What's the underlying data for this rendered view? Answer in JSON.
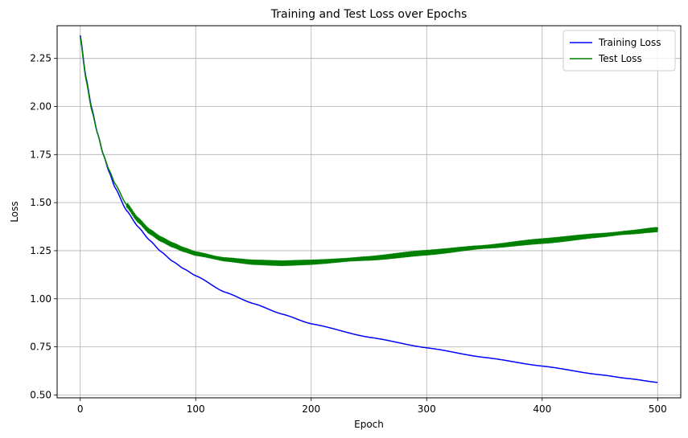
{
  "chart_data": {
    "type": "line",
    "title": "Training and Test Loss over Epochs",
    "xlabel": "Epoch",
    "ylabel": "Loss",
    "xlim": [
      -20,
      520
    ],
    "ylim": [
      0.485,
      2.42
    ],
    "xticks": [
      0,
      100,
      200,
      300,
      400,
      500
    ],
    "yticks": [
      0.5,
      0.75,
      1.0,
      1.25,
      1.5,
      1.75,
      2.0,
      2.25
    ],
    "ytick_labels": [
      "0.50",
      "0.75",
      "1.00",
      "1.25",
      "1.50",
      "1.75",
      "2.00",
      "2.25"
    ],
    "grid": true,
    "legend_position": "top-right",
    "series": [
      {
        "name": "Training Loss",
        "color": "#0000ff",
        "x": [
          0,
          5,
          10,
          15,
          20,
          25,
          30,
          40,
          50,
          60,
          70,
          80,
          90,
          100,
          125,
          150,
          175,
          200,
          250,
          300,
          350,
          400,
          450,
          475,
          500
        ],
        "y": [
          2.37,
          2.15,
          1.99,
          1.86,
          1.75,
          1.66,
          1.58,
          1.46,
          1.375,
          1.305,
          1.245,
          1.195,
          1.155,
          1.12,
          1.035,
          0.975,
          0.92,
          0.87,
          0.8,
          0.745,
          0.695,
          0.65,
          0.605,
          0.585,
          0.565
        ],
        "oscillation": 0
      },
      {
        "name": "Test Loss",
        "color": "#008000",
        "x": [
          0,
          5,
          10,
          15,
          20,
          25,
          30,
          40,
          50,
          60,
          70,
          80,
          90,
          100,
          125,
          150,
          175,
          200,
          250,
          300,
          350,
          400,
          450,
          475,
          500
        ],
        "y": [
          2.36,
          2.14,
          1.98,
          1.86,
          1.75,
          1.67,
          1.6,
          1.49,
          1.41,
          1.35,
          1.31,
          1.28,
          1.255,
          1.235,
          1.205,
          1.19,
          1.185,
          1.19,
          1.21,
          1.24,
          1.27,
          1.3,
          1.33,
          1.345,
          1.36
        ],
        "oscillation": 0.012
      }
    ]
  }
}
